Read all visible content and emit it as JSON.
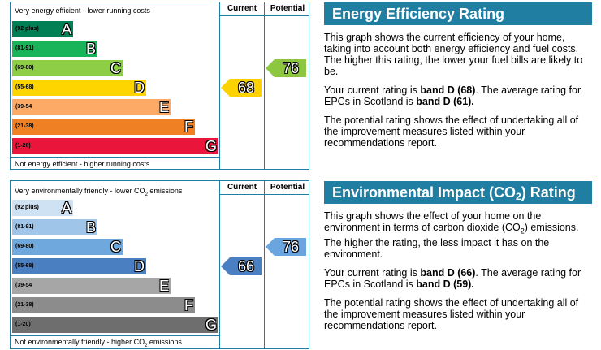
{
  "energy": {
    "top_text": "Very energy efficient - lower running costs",
    "bottom_text": "Not energy efficient - higher running costs",
    "current_header": "Current",
    "potential_header": "Potential",
    "current": "68",
    "potential": "76",
    "current_color": "#fcd200",
    "potential_color": "#8dc63f",
    "bands": [
      {
        "range": "(92 plus)",
        "letter": "A",
        "color": "#008054"
      },
      {
        "range": "(81-91)",
        "letter": "B",
        "color": "#19b459"
      },
      {
        "range": "(69-80)",
        "letter": "C",
        "color": "#8dce46"
      },
      {
        "range": "(55-68)",
        "letter": "D",
        "color": "#ffd500"
      },
      {
        "range": "(39-54",
        "letter": "E",
        "color": "#fcaa65"
      },
      {
        "range": "(21-38)",
        "letter": "F",
        "color": "#ef8023"
      },
      {
        "range": "(1-20)",
        "letter": "G",
        "color": "#e9153b"
      }
    ]
  },
  "environment": {
    "top_text_pre": "Very environmentally friendly - lower CO",
    "top_text_sub": "2",
    "top_text_post": " emissions",
    "bottom_text_pre": "Not environmentally friendly - higher CO",
    "bottom_text_sub": "2",
    "bottom_text_post": " emissions",
    "current_header": "Current",
    "potential_header": "Potential",
    "current": "66",
    "potential": "76",
    "current_color": "#4a7fc1",
    "potential_color": "#6aa5e0",
    "bands": [
      {
        "range": "(92 plus)",
        "letter": "A",
        "color": "#cfe2f3"
      },
      {
        "range": "(81-91)",
        "letter": "B",
        "color": "#9fc5e8"
      },
      {
        "range": "(69-80)",
        "letter": "C",
        "color": "#6fa8dc"
      },
      {
        "range": "(55-68)",
        "letter": "D",
        "color": "#4a7fc1"
      },
      {
        "range": "(39-54",
        "letter": "E",
        "color": "#a6a6a6"
      },
      {
        "range": "(21-38)",
        "letter": "F",
        "color": "#8c8c8c"
      },
      {
        "range": "(1-20)",
        "letter": "G",
        "color": "#6e6e6e"
      }
    ]
  },
  "panel_energy": {
    "title": "Energy Efficiency Rating",
    "p1": "This graph shows the current efficiency of your home, taking into account both energy efficiency and fuel costs. The higher this rating, the lower your fuel bills are likely to be.",
    "p2_pre": "Your current rating is ",
    "p2_bold1": "band D (68)",
    "p2_mid": ". The average rating for EPCs in Scotland is ",
    "p2_bold2": "band D (61).",
    "p3": "The potential rating shows the effect of undertaking all of the improvement measures listed within your recommendations report."
  },
  "panel_env": {
    "title_pre": "Environmental Impact (CO",
    "title_sub": "2",
    "title_post": ") Rating",
    "p1_a": "This graph shows the effect of your home on the environment in terms of carbon dioxide (CO",
    "p1_sub": "2",
    "p1_b": ") emissions. The higher the rating, the less impact it has on the environment.",
    "p2_pre": "Your current rating is ",
    "p2_bold1": "band D (66)",
    "p2_mid": ". The average rating for EPCs in Scotland is ",
    "p2_bold2": "band D (59).",
    "p3": "The potential rating shows the effect of undertaking all of the improvement measures listed within your recommendations report."
  }
}
